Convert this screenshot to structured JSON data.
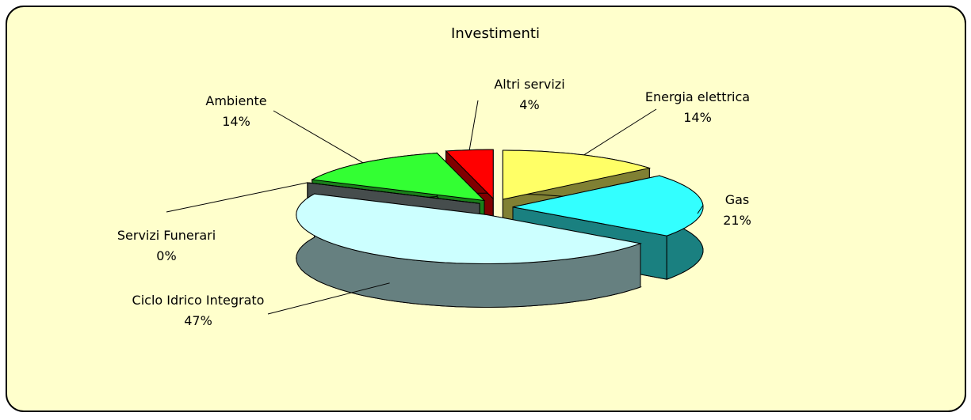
{
  "chart_data": {
    "type": "pie",
    "title": "Investimenti",
    "categories": [
      "Energia elettrica",
      "Gas",
      "Ciclo Idrico Integrato",
      "Servizi Funerari",
      "Ambiente",
      "Altri servizi"
    ],
    "values": [
      14,
      21,
      47,
      0,
      14,
      4
    ],
    "value_labels": [
      "14%",
      "21%",
      "47%",
      "0%",
      "14%",
      "4%"
    ],
    "colors": [
      "#ffff66",
      "#33ffff",
      "#ccffff",
      "#8c9a9a",
      "#33ff33",
      "#ff0000"
    ]
  }
}
